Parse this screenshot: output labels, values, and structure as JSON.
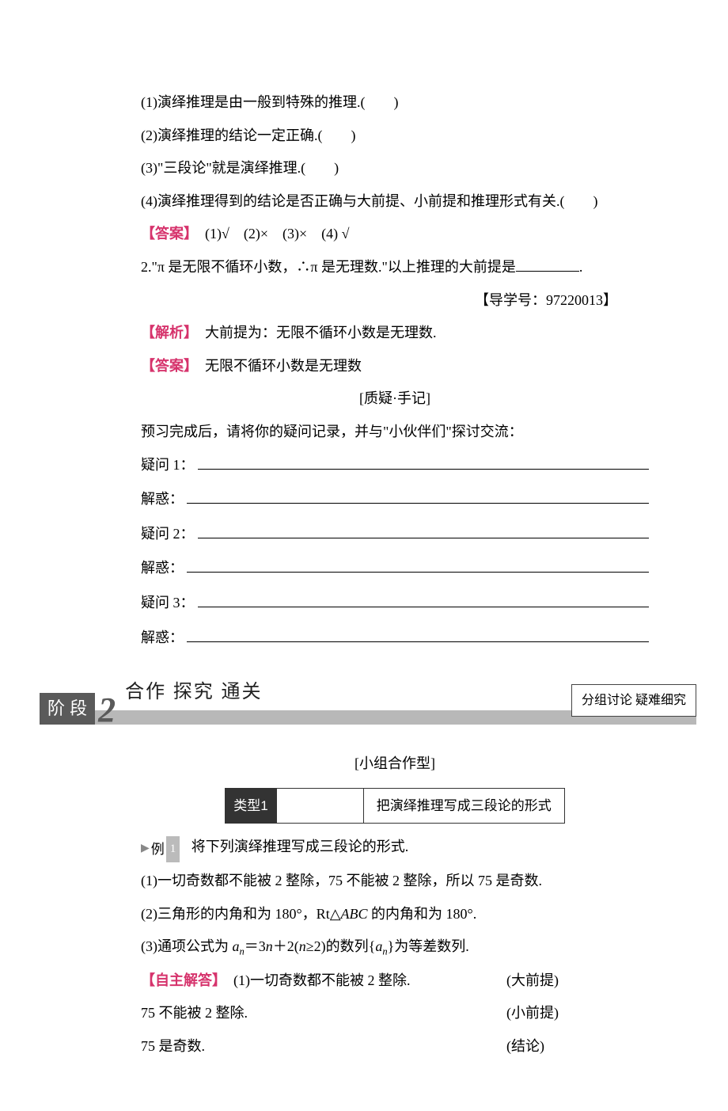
{
  "q1": {
    "item1": "(1)演绎推理是由一般到特殊的推理.(　　)",
    "item2": "(2)演绎推理的结论一定正确.(　　)",
    "item3": "(3)\"三段论\"就是演绎推理.(　　)",
    "item4": "(4)演绎推理得到的结论是否正确与大前提、小前提和推理形式有关.(　　)",
    "answer_label": "【答案】",
    "answer_text": "　(1)√　(2)×　(3)×　(4) √"
  },
  "q2": {
    "stem": "2.\"π 是无限不循环小数，∴π 是无理数.\"以上推理的大前提是",
    "guide": "【导学号：97220013】",
    "analysis_label": "【解析】",
    "analysis_text": "　大前提为：无限不循环小数是无理数.",
    "answer_label": "【答案】",
    "answer_text": "　无限不循环小数是无理数"
  },
  "notes": {
    "title": "[质疑·手记]",
    "intro": "预习完成后，请将你的疑问记录，并与\"小伙伴们\"探讨交流：",
    "q1": "疑问 1：",
    "a1": "解惑：",
    "q2": "疑问 2：",
    "a2": "解惑：",
    "q3": "疑问 3：",
    "a3": "解惑："
  },
  "section": {
    "stage_label": "阶 段",
    "stage_num": "2",
    "title": "合作 探究 通关",
    "subtitle": "分组讨论 疑难细究"
  },
  "group": {
    "heading": "[小组合作型]",
    "type_label": "类型1",
    "type_title": "把演绎推理写成三段论的形式"
  },
  "example": {
    "marker": "例",
    "marker_num": "1",
    "stem": "将下列演绎推理写成三段论的形式.",
    "item1": "(1)一切奇数都不能被 2 整除，75 不能被 2 整除，所以 75 是奇数.",
    "item2_pre": "(2)三角形的内角和为 180°，Rt△",
    "item2_abc": "ABC",
    "item2_post": " 的内角和为 180°.",
    "item3_pre": "(3)通项公式为 ",
    "item3_an": "a",
    "item3_sub1": "n",
    "item3_eq": "＝3",
    "item3_n": "n",
    "item3_plus": "＋2(",
    "item3_n2": "n",
    "item3_ge": "≥2)的数列{",
    "item3_an2": "a",
    "item3_sub2": "n",
    "item3_end": "}为等差数列."
  },
  "solution": {
    "label": "【自主解答】",
    "line1_text": "(1)一切奇数都不能被 2 整除.",
    "line1_label": "(大前提)",
    "line2_text": "75 不能被 2 整除.",
    "line2_label": "(小前提)",
    "line3_text": "75 是奇数.",
    "line3_label": "(结论)"
  }
}
